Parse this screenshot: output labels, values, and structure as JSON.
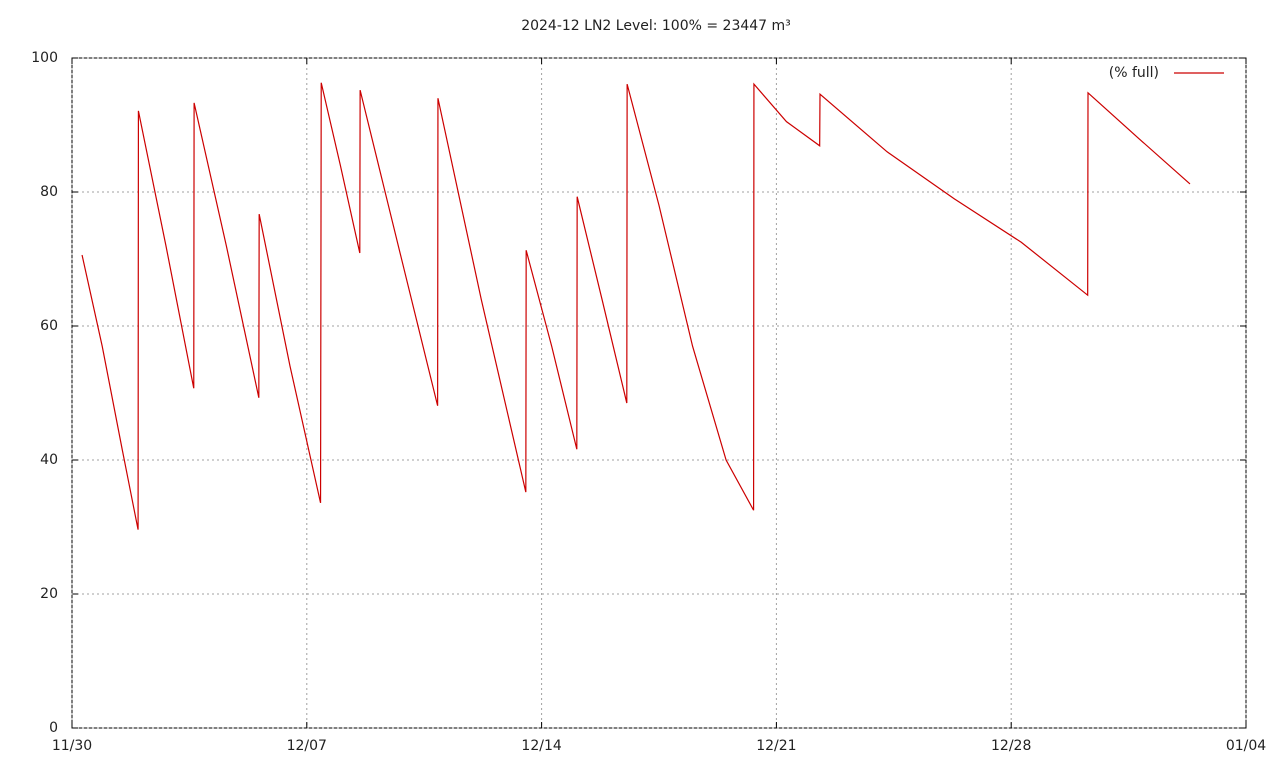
{
  "chart_data": {
    "type": "line",
    "title": "2024-12 LN2 Level: 100% = 23447 m³",
    "x": [
      0.3,
      0.9,
      1.5,
      1.97,
      1.98,
      2.8,
      3.63,
      3.64,
      4.6,
      5.57,
      5.58,
      6.5,
      7.41,
      7.43,
      8.0,
      8.58,
      8.59,
      9.8,
      10.9,
      10.91,
      12.2,
      13.53,
      13.54,
      14.3,
      15.05,
      15.06,
      15.8,
      16.54,
      16.55,
      17.5,
      18.5,
      19.5,
      20.32,
      20.33,
      21.3,
      22.29,
      22.3,
      24.3,
      26.3,
      28.3,
      30.28,
      30.29,
      31.8,
      33.33
    ],
    "series": [
      {
        "name": "(% full)",
        "color": "#cc0000",
        "values": [
          70.6,
          57.0,
          41.5,
          29.6,
          92.1,
          72.0,
          50.7,
          93.3,
          72.0,
          49.3,
          76.7,
          54.0,
          33.6,
          96.3,
          84.0,
          70.9,
          95.2,
          70.5,
          48.1,
          94.0,
          64.0,
          35.2,
          71.3,
          57.0,
          41.6,
          79.3,
          64.0,
          48.5,
          96.1,
          78.0,
          57.0,
          40.0,
          32.5,
          96.1,
          90.5,
          86.9,
          94.6,
          86.0,
          79.0,
          72.5,
          64.6,
          94.8,
          88.0,
          81.2
        ]
      }
    ],
    "xlim": [
      0,
      35
    ],
    "xticks": [
      {
        "value": 0,
        "label": "11/30"
      },
      {
        "value": 7,
        "label": "12/07"
      },
      {
        "value": 14,
        "label": "12/14"
      },
      {
        "value": 21,
        "label": "12/21"
      },
      {
        "value": 28,
        "label": "12/28"
      },
      {
        "value": 35,
        "label": "01/04"
      }
    ],
    "ylim": [
      0,
      100
    ],
    "yticks": [
      0,
      20,
      40,
      60,
      80,
      100
    ],
    "grid": true,
    "legend": "top-right"
  }
}
